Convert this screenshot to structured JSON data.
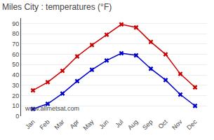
{
  "chart_data": {
    "type": "line",
    "title": "Miles City : temperatures (°F)",
    "categories": [
      "Jan",
      "Feb",
      "Mar",
      "Apr",
      "May",
      "Jun",
      "Jul",
      "Aug",
      "Sep",
      "Oct",
      "Nov",
      "Dec"
    ],
    "series": [
      {
        "color": "#cc0000",
        "values": [
          25,
          33,
          44,
          58,
          69,
          79,
          89,
          86,
          72,
          60,
          41,
          28
        ]
      },
      {
        "color": "#0000cc",
        "values": [
          7,
          12,
          22,
          34,
          45,
          54,
          61,
          59,
          46,
          35,
          21,
          10
        ]
      }
    ],
    "marker": "x",
    "ylim": [
      0,
      95
    ],
    "yticks": [
      0,
      10,
      20,
      30,
      40,
      50,
      60,
      70,
      80,
      90
    ],
    "grid": true,
    "annotations": [
      "www.allmetsat.com"
    ]
  }
}
